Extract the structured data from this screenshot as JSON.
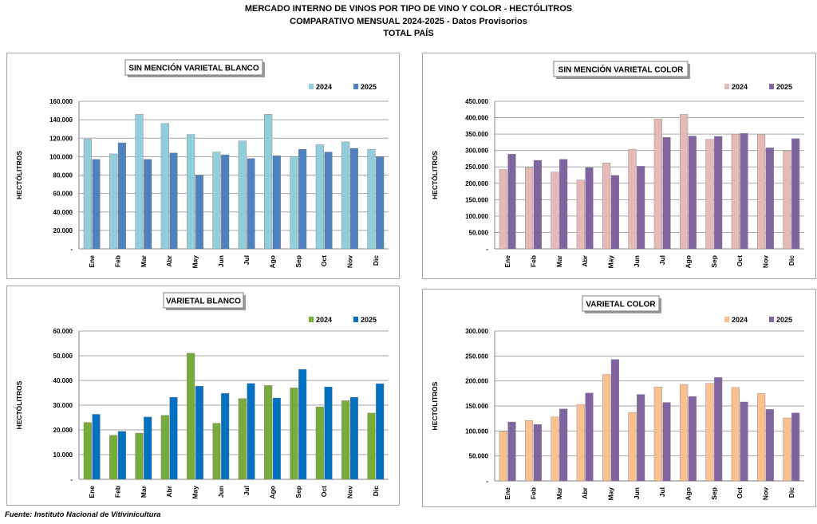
{
  "header": {
    "line1": "MERCADO INTERNO DE VINOS POR TIPO DE VINO Y COLOR - HECTÓLITROS",
    "line2": "COMPARATIVO MENSUAL 2024-2025 - Datos Provisorios",
    "line3": "TOTAL PAÍS"
  },
  "footer": "Fuente: Instituto Nacional de Vitivinicultura",
  "chart_data": [
    {
      "type": "bar",
      "title": "SIN MENCIÓN VARIETAL BLANCO",
      "ylabel": "HECTÓLITROS",
      "categories": [
        "Ene",
        "Feb",
        "Mar",
        "Abr",
        "May",
        "Jun",
        "Jul",
        "Ago",
        "Sep",
        "Oct",
        "Nov",
        "Dic"
      ],
      "series": [
        {
          "name": "2024",
          "color": "#92cddc",
          "values": [
            119000,
            103000,
            146000,
            136000,
            124000,
            105000,
            117000,
            146000,
            100000,
            113000,
            116000,
            108000
          ]
        },
        {
          "name": "2025",
          "color": "#4f81bd",
          "values": [
            97000,
            115000,
            97000,
            104000,
            80000,
            102000,
            98000,
            101000,
            108000,
            105000,
            109000,
            100000
          ]
        }
      ],
      "ylim": [
        0,
        160000
      ],
      "yticks": [
        "-",
        "20.000",
        "40.000",
        "60.000",
        "80.000",
        "100.000",
        "120.000",
        "140.000",
        "160.000"
      ],
      "grid": true,
      "legend": "top-right"
    },
    {
      "type": "bar",
      "title": "SIN MENCIÓN VARIETAL COLOR",
      "ylabel": "HECTÓLITROS",
      "categories": [
        "Ene",
        "Feb",
        "Mar",
        "Abr",
        "May",
        "Jun",
        "Jul",
        "Ago",
        "Sep",
        "Oct",
        "Nov",
        "Dic"
      ],
      "series": [
        {
          "name": "2024",
          "color": "#e6b9b8",
          "values": [
            242000,
            248000,
            234000,
            210000,
            262000,
            304000,
            396000,
            410000,
            334000,
            350000,
            348000,
            298000
          ]
        },
        {
          "name": "2025",
          "color": "#8064a2",
          "values": [
            289000,
            270000,
            273000,
            248000,
            224000,
            252000,
            340000,
            344000,
            343000,
            352000,
            308000,
            336000
          ]
        }
      ],
      "ylim": [
        0,
        450000
      ],
      "yticks": [
        "-",
        "50.000",
        "100.000",
        "150.000",
        "200.000",
        "250.000",
        "300.000",
        "350.000",
        "400.000",
        "450.000"
      ],
      "grid": true,
      "legend": "top-right"
    },
    {
      "type": "bar",
      "title": "VARIETAL BLANCO",
      "ylabel": "HECTÓLITROS",
      "categories": [
        "Ene",
        "Feb",
        "Mar",
        "Abr",
        "May",
        "Jun",
        "Jul",
        "Ago",
        "Sep",
        "Oct",
        "Nov",
        "Dic"
      ],
      "series": [
        {
          "name": "2024",
          "color": "#77ab3c",
          "values": [
            23000,
            17800,
            18700,
            25900,
            51000,
            22700,
            32700,
            38000,
            37000,
            29300,
            31800,
            26800
          ]
        },
        {
          "name": "2025",
          "color": "#0070c0",
          "values": [
            26300,
            19400,
            25200,
            33200,
            37700,
            34800,
            38800,
            32900,
            44500,
            37400,
            33200,
            38700
          ]
        }
      ],
      "ylim": [
        0,
        60000
      ],
      "yticks": [
        "-",
        "10.000",
        "20.000",
        "30.000",
        "40.000",
        "50.000",
        "60.000"
      ],
      "grid": true,
      "legend": "top-right"
    },
    {
      "type": "bar",
      "title": "VARIETAL COLOR",
      "ylabel": "HECTÓLITROS",
      "categories": [
        "Ene",
        "Feb",
        "Mar",
        "Abr",
        "May",
        "Jun",
        "Jul",
        "Ago",
        "Sep",
        "Oct",
        "Nov",
        "Dic"
      ],
      "series": [
        {
          "name": "2024",
          "color": "#fac090",
          "values": [
            99000,
            121000,
            128000,
            153000,
            213000,
            137000,
            188000,
            193000,
            195000,
            187000,
            175000,
            126000
          ]
        },
        {
          "name": "2025",
          "color": "#8064a2",
          "values": [
            118000,
            113000,
            144000,
            176000,
            243000,
            173000,
            157000,
            169000,
            207000,
            158000,
            143000,
            136000
          ]
        }
      ],
      "ylim": [
        0,
        300000
      ],
      "yticks": [
        "-",
        "50.000",
        "100.000",
        "150.000",
        "200.000",
        "250.000",
        "300.000"
      ],
      "grid": true,
      "legend": "top-right"
    }
  ]
}
